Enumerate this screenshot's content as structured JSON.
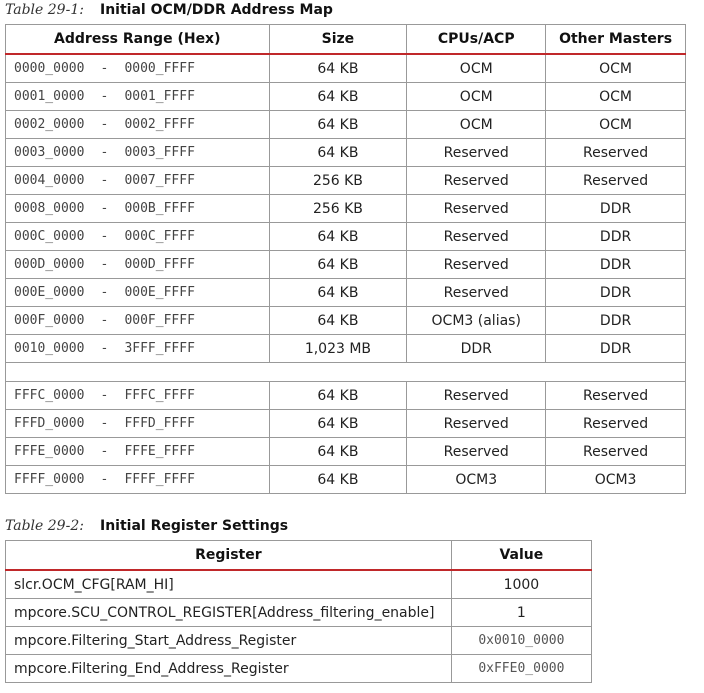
{
  "table1": {
    "number": "Table 29-1:",
    "title": "Initial OCM/DDR Address Map",
    "headers": [
      "Address Range (Hex)",
      "Size",
      "CPUs/ACP",
      "Other Masters"
    ],
    "rows_top": [
      {
        "start": "0000_0000",
        "sep": "-",
        "end": "0000_FFFF",
        "size": "64 KB",
        "cpu": "OCM",
        "other": "OCM"
      },
      {
        "start": "0001_0000",
        "sep": "-",
        "end": "0001_FFFF",
        "size": "64 KB",
        "cpu": "OCM",
        "other": "OCM"
      },
      {
        "start": "0002_0000",
        "sep": "-",
        "end": "0002_FFFF",
        "size": "64 KB",
        "cpu": "OCM",
        "other": "OCM"
      },
      {
        "start": "0003_0000",
        "sep": "-",
        "end": "0003_FFFF",
        "size": "64 KB",
        "cpu": "Reserved",
        "other": "Reserved"
      },
      {
        "start": "0004_0000",
        "sep": "-",
        "end": "0007_FFFF",
        "size": "256 KB",
        "cpu": "Reserved",
        "other": "Reserved"
      },
      {
        "start": "0008_0000",
        "sep": "-",
        "end": "000B_FFFF",
        "size": "256 KB",
        "cpu": "Reserved",
        "other": "DDR"
      },
      {
        "start": "000C_0000",
        "sep": "-",
        "end": "000C_FFFF",
        "size": "64 KB",
        "cpu": "Reserved",
        "other": "DDR"
      },
      {
        "start": "000D_0000",
        "sep": "-",
        "end": "000D_FFFF",
        "size": "64 KB",
        "cpu": "Reserved",
        "other": "DDR"
      },
      {
        "start": "000E_0000",
        "sep": "-",
        "end": "000E_FFFF",
        "size": "64 KB",
        "cpu": "Reserved",
        "other": "DDR"
      },
      {
        "start": "000F_0000",
        "sep": "-",
        "end": "000F_FFFF",
        "size": "64 KB",
        "cpu": "OCM3 (alias)",
        "other": "DDR"
      },
      {
        "start": "0010_0000",
        "sep": "-",
        "end": "3FFF_FFFF",
        "size": "1,023 MB",
        "cpu": "DDR",
        "other": "DDR"
      }
    ],
    "rows_bottom": [
      {
        "start": "FFFC_0000",
        "sep": "-",
        "end": "FFFC_FFFF",
        "size": "64 KB",
        "cpu": "Reserved",
        "other": "Reserved"
      },
      {
        "start": "FFFD_0000",
        "sep": "-",
        "end": "FFFD_FFFF",
        "size": "64 KB",
        "cpu": "Reserved",
        "other": "Reserved"
      },
      {
        "start": "FFFE_0000",
        "sep": "-",
        "end": "FFFE_FFFF",
        "size": "64 KB",
        "cpu": "Reserved",
        "other": "Reserved"
      },
      {
        "start": "FFFF_0000",
        "sep": "-",
        "end": "FFFF_FFFF",
        "size": "64 KB",
        "cpu": "OCM3",
        "other": "OCM3"
      }
    ]
  },
  "table2": {
    "number": "Table 29-2:",
    "title": "Initial Register Settings",
    "headers": [
      "Register",
      "Value"
    ],
    "rows": [
      {
        "register": "slcr.OCM_CFG[RAM_HI]",
        "value": "1000",
        "mono": false
      },
      {
        "register": "mpcore.SCU_CONTROL_REGISTER[Address_filtering_enable]",
        "value": "1",
        "mono": false
      },
      {
        "register": "mpcore.Filtering_Start_Address_Register",
        "value": "0x0010_0000",
        "mono": true
      },
      {
        "register": "mpcore.Filtering_End_Address_Register",
        "value": "0xFFE0_0000",
        "mono": true
      }
    ]
  },
  "colors": {
    "header_rule": "#c0282a",
    "grid": "#999999"
  }
}
